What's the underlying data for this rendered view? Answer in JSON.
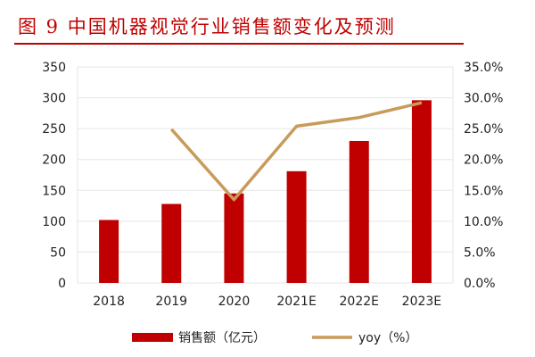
{
  "title": "图 9   中国机器视觉行业销售额变化及预测",
  "chart_data": {
    "type": "bar+line",
    "categories": [
      "2018",
      "2019",
      "2020",
      "2021E",
      "2022E",
      "2023E"
    ],
    "series": [
      {
        "name": "销售额（亿元）",
        "type": "bar",
        "axis": "left",
        "color": "#c00000",
        "values": [
          102,
          128,
          145,
          181,
          230,
          296
        ]
      },
      {
        "name": "yoy（%）",
        "type": "line",
        "axis": "right",
        "color": "#c89b5a",
        "values": [
          null,
          24.9,
          13.5,
          25.4,
          26.8,
          29.2
        ]
      }
    ],
    "left_axis": {
      "ylim": [
        0,
        350
      ],
      "ticks": [
        "0",
        "50",
        "100",
        "150",
        "200",
        "250",
        "300",
        "350"
      ]
    },
    "right_axis": {
      "ylim": [
        0,
        35
      ],
      "ticks": [
        "0.0%",
        "5.0%",
        "10.0%",
        "15.0%",
        "20.0%",
        "25.0%",
        "30.0%",
        "35.0%"
      ]
    },
    "grid": true,
    "legend": "bottom"
  }
}
